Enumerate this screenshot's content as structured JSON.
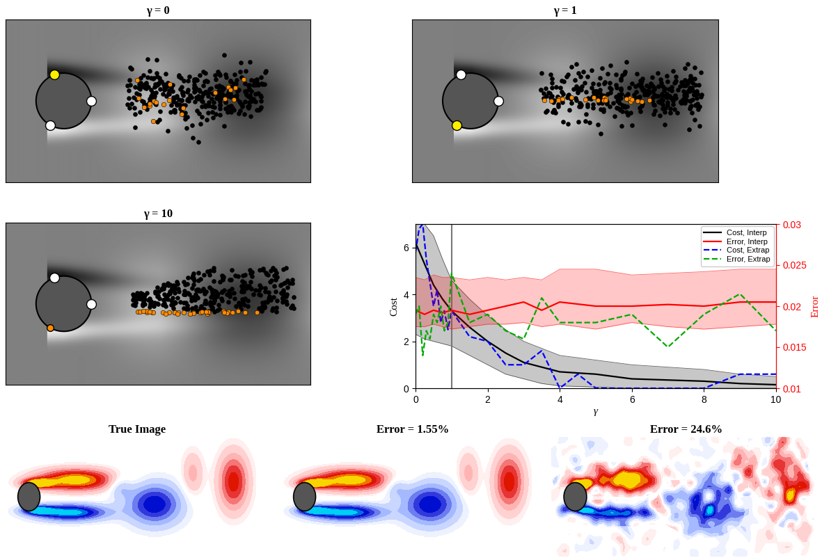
{
  "flow_panels": [
    {
      "title": "γ = 0"
    },
    {
      "title": "γ = 1"
    },
    {
      "title": "γ = 10"
    }
  ],
  "chart_data": {
    "type": "line",
    "xlabel": "γ",
    "ylabel": "Cost",
    "y2label": "Error",
    "xlim": [
      0,
      10
    ],
    "xticks": [
      0,
      2,
      4,
      6,
      8,
      10
    ],
    "ylim": [
      0,
      7
    ],
    "yticks": [
      0,
      2,
      4,
      6
    ],
    "y2lim": [
      0.01,
      0.03
    ],
    "y2ticks": [
      0.01,
      0.015,
      0.02,
      0.025,
      0.03
    ],
    "legend": "upper right",
    "vline": 1,
    "series": [
      {
        "name": "Cost, Interp",
        "color": "#000000",
        "line_style": "solid",
        "axis": "y",
        "x": [
          0,
          0.25,
          0.5,
          0.75,
          1,
          1.5,
          2,
          2.5,
          3,
          3.5,
          4,
          5,
          6,
          7,
          8,
          9,
          10
        ],
        "values": [
          6.2,
          5.3,
          4.4,
          3.8,
          3.3,
          2.6,
          2.0,
          1.5,
          1.1,
          0.9,
          0.7,
          0.6,
          0.4,
          0.35,
          0.3,
          0.2,
          0.15
        ],
        "lower": [
          2.3,
          2.1,
          2.0,
          1.9,
          1.8,
          1.4,
          1.0,
          0.6,
          0.4,
          0.2,
          0.1,
          0.05,
          0,
          0,
          0,
          0,
          0
        ],
        "upper": [
          7,
          7,
          6.5,
          5.5,
          4.6,
          3.8,
          3.1,
          2.5,
          2.0,
          1.7,
          1.4,
          1.2,
          1.0,
          0.9,
          0.8,
          0.6,
          0.5
        ]
      },
      {
        "name": "Error, Interp",
        "color": "#ff0000",
        "line_style": "solid",
        "axis": "y2",
        "x": [
          0,
          0.25,
          0.5,
          0.75,
          1,
          1.5,
          2,
          2.5,
          3,
          3.5,
          4,
          5,
          6,
          7,
          8,
          9,
          10
        ],
        "values": [
          0.0195,
          0.019,
          0.0195,
          0.0192,
          0.0195,
          0.019,
          0.0195,
          0.02,
          0.0205,
          0.0195,
          0.0205,
          0.02,
          0.02,
          0.0202,
          0.02,
          0.0205,
          0.0205
        ],
        "lower": [
          0.0175,
          0.0175,
          0.0178,
          0.0175,
          0.0172,
          0.0175,
          0.0178,
          0.0178,
          0.018,
          0.0175,
          0.0178,
          0.0172,
          0.018,
          0.0175,
          0.0172,
          0.0175,
          0.0178
        ],
        "upper": [
          0.0235,
          0.0232,
          0.0238,
          0.0235,
          0.0235,
          0.0232,
          0.0235,
          0.0232,
          0.0235,
          0.0232,
          0.0245,
          0.0245,
          0.0238,
          0.024,
          0.0242,
          0.0245,
          0.0245
        ]
      },
      {
        "name": "Cost, Extrap",
        "color": "#0000ff",
        "line_style": "dashed",
        "axis": "y",
        "x": [
          0,
          0.1,
          0.2,
          0.3,
          0.4,
          0.5,
          0.6,
          0.7,
          0.8,
          0.9,
          1,
          1.5,
          2,
          2.5,
          3,
          3.5,
          4,
          4.5,
          5,
          6,
          7,
          8,
          9,
          10
        ],
        "values": [
          5.8,
          6.8,
          7.0,
          5.5,
          4.5,
          3.5,
          4.2,
          2.8,
          3.3,
          2.5,
          3.3,
          2.2,
          2.0,
          1.0,
          1.0,
          1.6,
          0,
          0.6,
          0,
          0,
          0,
          0,
          0.6,
          0.6
        ]
      },
      {
        "name": "Error, Extrap",
        "color": "#00aa00",
        "line_style": "dashed",
        "axis": "y2",
        "x": [
          0,
          0.1,
          0.2,
          0.3,
          0.4,
          0.5,
          0.6,
          0.7,
          0.8,
          0.9,
          1,
          1.5,
          2,
          2.5,
          3,
          3.5,
          4,
          5,
          6,
          7,
          8,
          9,
          10
        ],
        "values": [
          0.019,
          0.02,
          0.014,
          0.017,
          0.016,
          0.019,
          0.018,
          0.02,
          0.017,
          0.018,
          0.024,
          0.018,
          0.019,
          0.017,
          0.016,
          0.021,
          0.018,
          0.018,
          0.019,
          0.015,
          0.019,
          0.0215,
          0.017
        ]
      }
    ]
  },
  "reconstructions": [
    {
      "title": "True Image"
    },
    {
      "title": "Error = 1.55%"
    },
    {
      "title": "Error = 24.6%"
    }
  ]
}
